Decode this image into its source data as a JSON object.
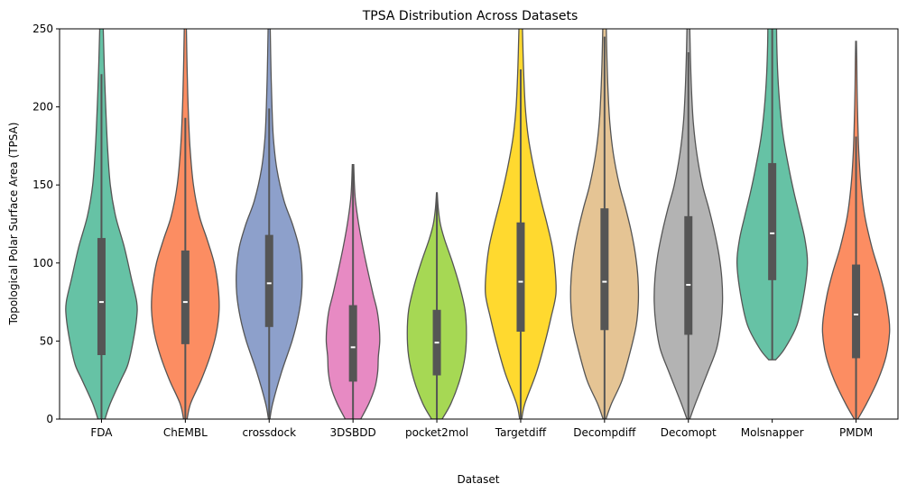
{
  "chart_data": {
    "type": "violin",
    "title": "TPSA Distribution Across Datasets",
    "xlabel": "Dataset",
    "ylabel": "Topological Polar Surface Area (TPSA)",
    "ylim": [
      0,
      250
    ],
    "yticks": [
      0,
      50,
      100,
      150,
      200,
      250
    ],
    "grid": false,
    "series": [
      {
        "name": "FDA",
        "color": "#66c2a5",
        "min": 0,
        "max": 260,
        "q1": 41,
        "median": 75,
        "q3": 116,
        "whisker_low": 0,
        "whisker_high": 221,
        "profile": [
          [
            0,
            0.1
          ],
          [
            10,
            0.25
          ],
          [
            25,
            0.55
          ],
          [
            35,
            0.75
          ],
          [
            50,
            0.9
          ],
          [
            65,
            1.0
          ],
          [
            75,
            1.0
          ],
          [
            90,
            0.85
          ],
          [
            110,
            0.65
          ],
          [
            130,
            0.4
          ],
          [
            150,
            0.25
          ],
          [
            175,
            0.17
          ],
          [
            200,
            0.12
          ],
          [
            225,
            0.08
          ],
          [
            250,
            0.05
          ],
          [
            260,
            0.03
          ]
        ]
      },
      {
        "name": "ChEMBL",
        "color": "#fc8d62",
        "min": 0,
        "max": 260,
        "q1": 48,
        "median": 75,
        "q3": 108,
        "whisker_low": 0,
        "whisker_high": 193,
        "profile": [
          [
            0,
            0.05
          ],
          [
            10,
            0.15
          ],
          [
            25,
            0.45
          ],
          [
            40,
            0.7
          ],
          [
            55,
            0.88
          ],
          [
            70,
            0.96
          ],
          [
            85,
            0.93
          ],
          [
            100,
            0.82
          ],
          [
            115,
            0.62
          ],
          [
            130,
            0.4
          ],
          [
            150,
            0.23
          ],
          [
            175,
            0.13
          ],
          [
            200,
            0.08
          ],
          [
            225,
            0.05
          ],
          [
            250,
            0.03
          ],
          [
            260,
            0.02
          ]
        ]
      },
      {
        "name": "crossdock",
        "color": "#8da0cb",
        "min": 0,
        "max": 260,
        "q1": 59,
        "median": 87,
        "q3": 118,
        "whisker_low": 0,
        "whisker_high": 199,
        "profile": [
          [
            0,
            0.02
          ],
          [
            10,
            0.1
          ],
          [
            30,
            0.35
          ],
          [
            50,
            0.65
          ],
          [
            65,
            0.82
          ],
          [
            80,
            0.92
          ],
          [
            95,
            0.93
          ],
          [
            110,
            0.85
          ],
          [
            125,
            0.66
          ],
          [
            140,
            0.42
          ],
          [
            160,
            0.22
          ],
          [
            180,
            0.12
          ],
          [
            200,
            0.08
          ],
          [
            225,
            0.05
          ],
          [
            250,
            0.03
          ],
          [
            260,
            0.02
          ]
        ]
      },
      {
        "name": "3DSBDD",
        "color": "#e78ac3",
        "min": 0,
        "max": 163,
        "q1": 24,
        "median": 46,
        "q3": 73,
        "whisker_low": 0,
        "whisker_high": 163,
        "profile": [
          [
            0,
            0.22
          ],
          [
            10,
            0.45
          ],
          [
            20,
            0.62
          ],
          [
            30,
            0.7
          ],
          [
            40,
            0.72
          ],
          [
            50,
            0.76
          ],
          [
            60,
            0.74
          ],
          [
            70,
            0.68
          ],
          [
            80,
            0.57
          ],
          [
            95,
            0.42
          ],
          [
            110,
            0.28
          ],
          [
            125,
            0.16
          ],
          [
            140,
            0.07
          ],
          [
            150,
            0.04
          ],
          [
            163,
            0.02
          ]
        ]
      },
      {
        "name": "pocket2mol",
        "color": "#a6d854",
        "min": 0,
        "max": 145,
        "q1": 28,
        "median": 49,
        "q3": 70,
        "whisker_low": 0,
        "whisker_high": 145,
        "profile": [
          [
            0,
            0.15
          ],
          [
            10,
            0.4
          ],
          [
            25,
            0.65
          ],
          [
            40,
            0.8
          ],
          [
            55,
            0.84
          ],
          [
            70,
            0.8
          ],
          [
            85,
            0.65
          ],
          [
            100,
            0.45
          ],
          [
            115,
            0.22
          ],
          [
            125,
            0.1
          ],
          [
            135,
            0.04
          ],
          [
            145,
            0.01
          ]
        ]
      },
      {
        "name": "Targetdiff",
        "color": "#ffd92f",
        "min": 0,
        "max": 260,
        "q1": 56,
        "median": 88,
        "q3": 126,
        "whisker_low": 0,
        "whisker_high": 224,
        "profile": [
          [
            0,
            0.03
          ],
          [
            10,
            0.12
          ],
          [
            30,
            0.45
          ],
          [
            50,
            0.7
          ],
          [
            65,
            0.86
          ],
          [
            80,
            1.0
          ],
          [
            95,
            0.98
          ],
          [
            110,
            0.9
          ],
          [
            125,
            0.75
          ],
          [
            140,
            0.58
          ],
          [
            160,
            0.38
          ],
          [
            180,
            0.22
          ],
          [
            200,
            0.13
          ],
          [
            225,
            0.08
          ],
          [
            250,
            0.05
          ],
          [
            260,
            0.03
          ]
        ]
      },
      {
        "name": "Decompdiff",
        "color": "#e5c494",
        "min": 0,
        "max": 260,
        "q1": 57,
        "median": 88,
        "q3": 135,
        "whisker_low": 0,
        "whisker_high": 245,
        "profile": [
          [
            0,
            0.04
          ],
          [
            10,
            0.2
          ],
          [
            25,
            0.5
          ],
          [
            45,
            0.75
          ],
          [
            60,
            0.9
          ],
          [
            75,
            0.96
          ],
          [
            90,
            0.95
          ],
          [
            105,
            0.88
          ],
          [
            120,
            0.76
          ],
          [
            135,
            0.6
          ],
          [
            150,
            0.42
          ],
          [
            170,
            0.25
          ],
          [
            190,
            0.15
          ],
          [
            210,
            0.1
          ],
          [
            230,
            0.07
          ],
          [
            250,
            0.05
          ],
          [
            260,
            0.04
          ]
        ]
      },
      {
        "name": "Decomopt",
        "color": "#b3b3b3",
        "min": 0,
        "max": 260,
        "q1": 54,
        "median": 86,
        "q3": 130,
        "whisker_low": 0,
        "whisker_high": 235,
        "profile": [
          [
            0,
            0.04
          ],
          [
            10,
            0.2
          ],
          [
            30,
            0.55
          ],
          [
            45,
            0.8
          ],
          [
            60,
            0.92
          ],
          [
            75,
            0.97
          ],
          [
            90,
            0.95
          ],
          [
            105,
            0.87
          ],
          [
            120,
            0.74
          ],
          [
            135,
            0.58
          ],
          [
            150,
            0.4
          ],
          [
            170,
            0.24
          ],
          [
            190,
            0.14
          ],
          [
            210,
            0.09
          ],
          [
            230,
            0.06
          ],
          [
            250,
            0.04
          ],
          [
            260,
            0.04
          ]
        ]
      },
      {
        "name": "Molsnapper",
        "color": "#66c2a5",
        "min": 38,
        "max": 260,
        "q1": 89,
        "median": 119,
        "q3": 164,
        "whisker_low": 38,
        "whisker_high": 260,
        "profile": [
          [
            38,
            0.1
          ],
          [
            45,
            0.35
          ],
          [
            60,
            0.7
          ],
          [
            80,
            0.9
          ],
          [
            100,
            1.0
          ],
          [
            115,
            0.93
          ],
          [
            130,
            0.78
          ],
          [
            145,
            0.62
          ],
          [
            160,
            0.48
          ],
          [
            180,
            0.32
          ],
          [
            200,
            0.22
          ],
          [
            220,
            0.16
          ],
          [
            240,
            0.13
          ],
          [
            260,
            0.12
          ]
        ]
      },
      {
        "name": "PMDM",
        "color": "#fc8d62",
        "min": 0,
        "max": 242,
        "q1": 39,
        "median": 67,
        "q3": 99,
        "whisker_low": 0,
        "whisker_high": 181,
        "profile": [
          [
            0,
            0.05
          ],
          [
            10,
            0.3
          ],
          [
            25,
            0.62
          ],
          [
            40,
            0.85
          ],
          [
            55,
            0.95
          ],
          [
            65,
            0.93
          ],
          [
            80,
            0.82
          ],
          [
            95,
            0.65
          ],
          [
            110,
            0.45
          ],
          [
            130,
            0.25
          ],
          [
            150,
            0.14
          ],
          [
            170,
            0.08
          ],
          [
            190,
            0.05
          ],
          [
            210,
            0.03
          ],
          [
            230,
            0.02
          ],
          [
            242,
            0.01
          ]
        ]
      }
    ]
  }
}
